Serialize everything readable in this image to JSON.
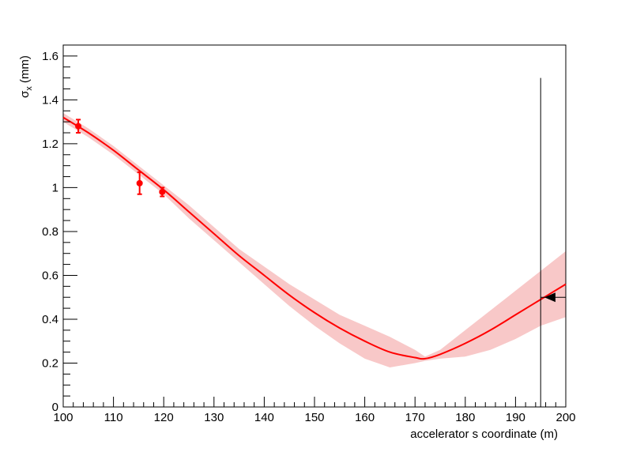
{
  "chart_data": {
    "type": "scatter",
    "title": "",
    "xlabel": "accelerator s coordinate (m)",
    "ylabel": {
      "main": "σ",
      "sub": "x",
      "unit": " (mm)"
    },
    "xlim": [
      100,
      200
    ],
    "ylim": [
      0,
      1.65
    ],
    "xticks": [
      100,
      110,
      120,
      130,
      140,
      150,
      160,
      170,
      180,
      190,
      200
    ],
    "yticks": [
      0,
      0.2,
      0.4,
      0.6,
      0.8,
      1,
      1.2,
      1.4,
      1.6
    ],
    "grid": false,
    "colors": {
      "data": "#ff0000",
      "fit": "#ff0000",
      "band": "#f8c8c8",
      "marker": "#000000",
      "axis": "#000000"
    },
    "series": [
      {
        "kind": "points_with_errors",
        "points": [
          {
            "x": 103.0,
            "y": 1.28,
            "err": 0.03
          },
          {
            "x": 115.2,
            "y": 1.02,
            "err": 0.05
          },
          {
            "x": 119.7,
            "y": 0.98,
            "err": 0.02
          }
        ]
      },
      {
        "kind": "fit_curve_with_band",
        "x": [
          100,
          105,
          110,
          115,
          120,
          125,
          130,
          135,
          140,
          145,
          150,
          155,
          160,
          165,
          170,
          172,
          175,
          180,
          185,
          190,
          195,
          200
        ],
        "y": [
          1.32,
          1.25,
          1.17,
          1.08,
          0.99,
          0.89,
          0.79,
          0.69,
          0.6,
          0.51,
          0.43,
          0.36,
          0.3,
          0.25,
          0.225,
          0.22,
          0.24,
          0.29,
          0.35,
          0.42,
          0.49,
          0.56
        ],
        "band_low": [
          1.3,
          1.23,
          1.15,
          1.06,
          0.97,
          0.86,
          0.76,
          0.66,
          0.56,
          0.46,
          0.37,
          0.29,
          0.22,
          0.18,
          0.2,
          0.21,
          0.22,
          0.23,
          0.26,
          0.31,
          0.37,
          0.41
        ],
        "band_high": [
          1.34,
          1.27,
          1.19,
          1.1,
          1.01,
          0.92,
          0.82,
          0.72,
          0.64,
          0.56,
          0.49,
          0.42,
          0.37,
          0.32,
          0.26,
          0.23,
          0.26,
          0.35,
          0.44,
          0.53,
          0.62,
          0.71
        ]
      },
      {
        "kind": "marker",
        "shape": "triangle-left",
        "x": 197.0,
        "y": 0.5,
        "hline_from": 195.0,
        "hline_to": 200.0
      },
      {
        "kind": "vline",
        "x": 195.0,
        "y_top": 1.5,
        "y_bottom": 0
      }
    ]
  }
}
